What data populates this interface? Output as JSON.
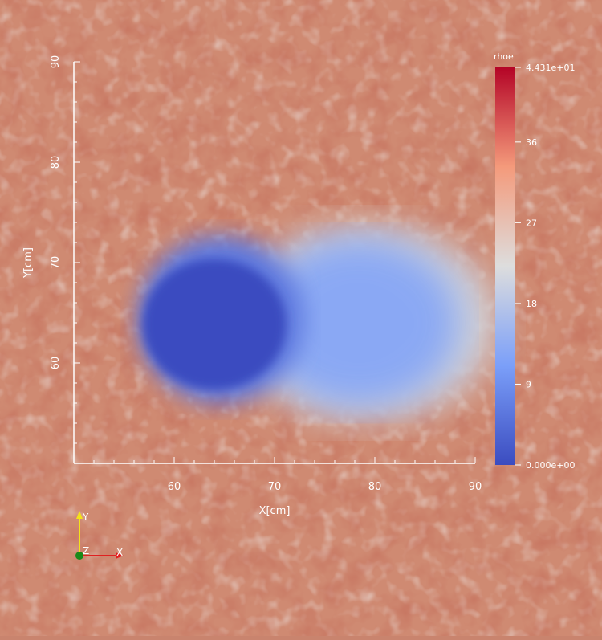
{
  "chart_data": {
    "type": "heatmap",
    "title": "",
    "field": "rhoe",
    "xlabel": "X[cm]",
    "ylabel": "Y[cm]",
    "xlim": [
      50,
      90
    ],
    "ylim": [
      50,
      90
    ],
    "x_major_ticks": [
      "60",
      "70",
      "80",
      "90"
    ],
    "y_major_ticks": [
      "60",
      "70",
      "80",
      "90"
    ],
    "colorbar": {
      "title": "rhoe",
      "range": [
        0,
        44.31
      ],
      "tick_labels": [
        "4.431e+01",
        "36",
        "27",
        "18",
        "9",
        "0.000e+00"
      ],
      "tick_values": [
        44.31,
        36,
        27,
        18,
        9,
        0
      ],
      "colors": {
        "low": "#3b4cc0",
        "mid": "#dddddd",
        "high": "#b40426"
      }
    },
    "features": [
      {
        "name": "bubble core",
        "center": [
          64,
          64
        ],
        "radius": 6.5,
        "value": 0
      },
      {
        "name": "depleted wake",
        "x_range": [
          70,
          90
        ],
        "y_range": [
          55,
          73
        ],
        "value": 12
      }
    ],
    "background_value": 33
  },
  "orientation_axes": {
    "y_label": "Y",
    "z_label": "Z",
    "x_label": "X"
  }
}
